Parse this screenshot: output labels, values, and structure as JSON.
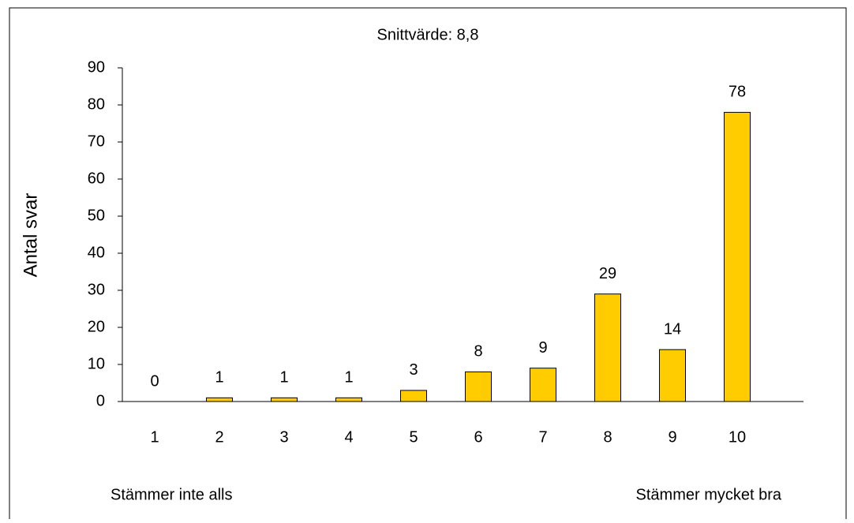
{
  "chart_data": {
    "type": "bar",
    "title": "Snittvärde: 8,8",
    "y_label": "Antal svar",
    "annotations": [
      "Stämmer inte alls",
      "Stämmer mycket bra"
    ],
    "categories": [
      "1",
      "2",
      "3",
      "4",
      "5",
      "6",
      "7",
      "8",
      "9",
      "10"
    ],
    "values": [
      0,
      1,
      1,
      1,
      3,
      8,
      9,
      29,
      14,
      78
    ],
    "color": "#ffcc00",
    "ylim": [
      0,
      90
    ],
    "yticks": [
      0,
      10,
      20,
      30,
      40,
      50,
      60,
      70,
      80,
      90
    ],
    "grid": false
  }
}
